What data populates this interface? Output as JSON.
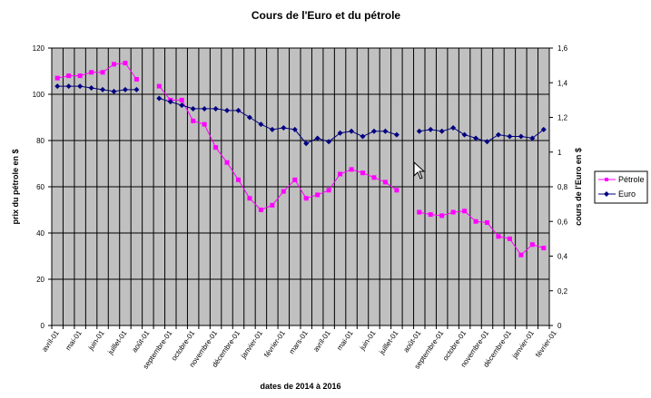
{
  "chart_data": {
    "type": "line",
    "title": "Cours de l'Euro et du pétrole",
    "xlabel": "dates de 2014 à 2016",
    "ylabel": "prix du pétrole en $",
    "y2label": "cours de l'Euro en $",
    "ylim": [
      0,
      120
    ],
    "y2lim": [
      0,
      1.6
    ],
    "yticks": [
      "0",
      "20",
      "40",
      "60",
      "80",
      "100",
      "120"
    ],
    "y2ticks": [
      "0",
      "0,2",
      "0,4",
      "0,6",
      "0,8",
      "1",
      "1,2",
      "1,4",
      "1,6"
    ],
    "x_tick_labels": [
      "avril-01",
      "mai-01",
      "juin-01",
      "juillet-01",
      "août-01",
      "septembre-01",
      "octobre-01",
      "novembre-01",
      "décembre-01",
      "janvier-01",
      "février-01",
      "mars-01",
      "avril-01",
      "mai-01",
      "juin-01",
      "juillet-01",
      "août-01",
      "septembre-01",
      "octobre-01",
      "novembre-01",
      "décembre-01",
      "janvier-01",
      "février-01"
    ],
    "grid": true,
    "plot_background": "#c0c0c0",
    "legend_position": "right",
    "series": [
      {
        "name": "Pétrole",
        "color": "#ff00ff",
        "marker": "square",
        "axis": "left",
        "values": [
          107,
          108,
          108,
          109.5,
          109.5,
          113,
          113.5,
          106.5,
          null,
          103.5,
          97.5,
          97.5,
          88.5,
          87,
          77,
          70.5,
          63,
          55,
          50,
          52,
          58,
          63,
          55,
          56.5,
          58.5,
          65.5,
          67.5,
          66,
          64,
          62,
          58.5,
          null,
          49,
          48,
          47.5,
          49,
          49.5,
          45,
          44.5,
          38.5,
          37.5,
          30.5,
          35,
          33.5
        ]
      },
      {
        "name": "Euro",
        "color": "#000080",
        "marker": "diamond",
        "axis": "right",
        "values": [
          1.38,
          1.38,
          1.38,
          1.37,
          1.36,
          1.35,
          1.36,
          1.36,
          null,
          1.31,
          1.29,
          1.27,
          1.25,
          1.25,
          1.25,
          1.24,
          1.24,
          1.2,
          1.16,
          1.13,
          1.14,
          1.13,
          1.05,
          1.08,
          1.06,
          1.11,
          1.12,
          1.09,
          1.12,
          1.12,
          1.1,
          null,
          1.12,
          1.13,
          1.12,
          1.14,
          1.1,
          1.08,
          1.06,
          1.1,
          1.09,
          1.09,
          1.08,
          1.13
        ]
      }
    ]
  }
}
